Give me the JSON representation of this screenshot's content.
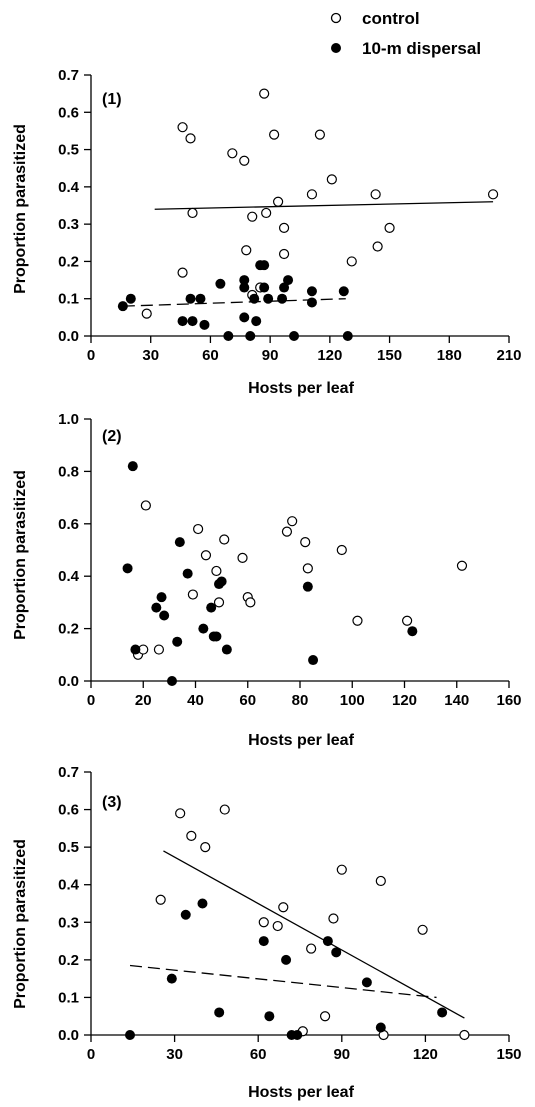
{
  "legend": [
    {
      "label": "control",
      "marker": "open-circle"
    },
    {
      "label": "10-m dispersal",
      "marker": "filled-circle"
    }
  ],
  "colors": {
    "ink": "#000000",
    "background": "#ffffff"
  },
  "chart_data": [
    {
      "type": "scatter",
      "panel_label": "(1)",
      "xlabel": "Hosts per leaf",
      "ylabel": "Proportion parasitized",
      "xlim": [
        0,
        210
      ],
      "ylim": [
        0,
        0.7
      ],
      "xticks": [
        "0",
        "30",
        "60",
        "90",
        "120",
        "150",
        "180",
        "210"
      ],
      "yticks": [
        "0.0",
        "0.1",
        "0.2",
        "0.3",
        "0.4",
        "0.5",
        "0.6",
        "0.7"
      ],
      "xtick_values": [
        0,
        30,
        60,
        90,
        120,
        150,
        180,
        210
      ],
      "ytick_values": [
        0,
        0.1,
        0.2,
        0.3,
        0.4,
        0.5,
        0.6,
        0.7
      ],
      "series": [
        {
          "name": "control",
          "marker": "open-circle",
          "line_style": "solid",
          "fit": [
            [
              32,
              0.34
            ],
            [
              202,
              0.36
            ]
          ],
          "points": [
            [
              28,
              0.06
            ],
            [
              46,
              0.56
            ],
            [
              46,
              0.17
            ],
            [
              50,
              0.53
            ],
            [
              51,
              0.33
            ],
            [
              71,
              0.49
            ],
            [
              77,
              0.47
            ],
            [
              78,
              0.23
            ],
            [
              81,
              0.32
            ],
            [
              81,
              0.11
            ],
            [
              85,
              0.13
            ],
            [
              87,
              0.65
            ],
            [
              88,
              0.33
            ],
            [
              92,
              0.54
            ],
            [
              94,
              0.36
            ],
            [
              97,
              0.29
            ],
            [
              97,
              0.22
            ],
            [
              111,
              0.38
            ],
            [
              115,
              0.54
            ],
            [
              121,
              0.42
            ],
            [
              131,
              0.2
            ],
            [
              143,
              0.38
            ],
            [
              144,
              0.24
            ],
            [
              150,
              0.29
            ],
            [
              202,
              0.38
            ]
          ]
        },
        {
          "name": "10-m dispersal",
          "marker": "filled-circle",
          "line_style": "dashed",
          "fit": [
            [
              16,
              0.08
            ],
            [
              128,
              0.1
            ]
          ],
          "points": [
            [
              16,
              0.08
            ],
            [
              20,
              0.1
            ],
            [
              46,
              0.04
            ],
            [
              50,
              0.1
            ],
            [
              51,
              0.04
            ],
            [
              55,
              0.1
            ],
            [
              57,
              0.03
            ],
            [
              65,
              0.14
            ],
            [
              69,
              0.0
            ],
            [
              77,
              0.05
            ],
            [
              77,
              0.15
            ],
            [
              77,
              0.13
            ],
            [
              80,
              0.0
            ],
            [
              82,
              0.1
            ],
            [
              83,
              0.04
            ],
            [
              85,
              0.19
            ],
            [
              87,
              0.19
            ],
            [
              87,
              0.13
            ],
            [
              89,
              0.1
            ],
            [
              96,
              0.1
            ],
            [
              97,
              0.13
            ],
            [
              99,
              0.15
            ],
            [
              102,
              0.0
            ],
            [
              111,
              0.12
            ],
            [
              111,
              0.09
            ],
            [
              127,
              0.12
            ],
            [
              129,
              0.0
            ]
          ]
        }
      ]
    },
    {
      "type": "scatter",
      "panel_label": "(2)",
      "xlabel": "Hosts per leaf",
      "ylabel": "Proportion parasitized",
      "xlim": [
        0,
        160
      ],
      "ylim": [
        0,
        1.0
      ],
      "xticks": [
        "0",
        "20",
        "40",
        "60",
        "80",
        "100",
        "120",
        "140",
        "160"
      ],
      "yticks": [
        "0.0",
        "0.2",
        "0.4",
        "0.6",
        "0.8",
        "1.0"
      ],
      "xtick_values": [
        0,
        20,
        40,
        60,
        80,
        100,
        120,
        140,
        160
      ],
      "ytick_values": [
        0,
        0.2,
        0.4,
        0.6,
        0.8,
        1.0
      ],
      "series": [
        {
          "name": "control",
          "marker": "open-circle",
          "line_style": "none",
          "points": [
            [
              18,
              0.1
            ],
            [
              20,
              0.12
            ],
            [
              21,
              0.67
            ],
            [
              26,
              0.12
            ],
            [
              39,
              0.33
            ],
            [
              41,
              0.58
            ],
            [
              44,
              0.48
            ],
            [
              48,
              0.42
            ],
            [
              49,
              0.3
            ],
            [
              51,
              0.54
            ],
            [
              58,
              0.47
            ],
            [
              60,
              0.32
            ],
            [
              61,
              0.3
            ],
            [
              75,
              0.57
            ],
            [
              77,
              0.61
            ],
            [
              82,
              0.53
            ],
            [
              83,
              0.43
            ],
            [
              96,
              0.5
            ],
            [
              102,
              0.23
            ],
            [
              121,
              0.23
            ],
            [
              142,
              0.44
            ]
          ]
        },
        {
          "name": "10-m dispersal",
          "marker": "filled-circle",
          "line_style": "none",
          "points": [
            [
              14,
              0.43
            ],
            [
              16,
              0.82
            ],
            [
              17,
              0.12
            ],
            [
              25,
              0.28
            ],
            [
              27,
              0.32
            ],
            [
              28,
              0.25
            ],
            [
              31,
              0.0
            ],
            [
              33,
              0.15
            ],
            [
              34,
              0.53
            ],
            [
              37,
              0.41
            ],
            [
              43,
              0.2
            ],
            [
              46,
              0.28
            ],
            [
              47,
              0.17
            ],
            [
              48,
              0.17
            ],
            [
              49,
              0.37
            ],
            [
              50,
              0.38
            ],
            [
              52,
              0.12
            ],
            [
              83,
              0.36
            ],
            [
              85,
              0.08
            ],
            [
              123,
              0.19
            ]
          ]
        }
      ]
    },
    {
      "type": "scatter",
      "panel_label": "(3)",
      "xlabel": "Hosts per leaf",
      "ylabel": "Proportion parasitized",
      "xlim": [
        0,
        150
      ],
      "ylim": [
        0,
        0.7
      ],
      "xticks": [
        "0",
        "30",
        "60",
        "90",
        "120",
        "150"
      ],
      "yticks": [
        "0.0",
        "0.1",
        "0.2",
        "0.3",
        "0.4",
        "0.5",
        "0.6",
        "0.7"
      ],
      "xtick_values": [
        0,
        30,
        60,
        90,
        120,
        150
      ],
      "ytick_values": [
        0,
        0.1,
        0.2,
        0.3,
        0.4,
        0.5,
        0.6,
        0.7
      ],
      "series": [
        {
          "name": "control",
          "marker": "open-circle",
          "line_style": "solid",
          "fit": [
            [
              26,
              0.49
            ],
            [
              134,
              0.045
            ]
          ],
          "points": [
            [
              25,
              0.36
            ],
            [
              32,
              0.59
            ],
            [
              36,
              0.53
            ],
            [
              41,
              0.5
            ],
            [
              48,
              0.6
            ],
            [
              62,
              0.3
            ],
            [
              67,
              0.29
            ],
            [
              69,
              0.34
            ],
            [
              76,
              0.01
            ],
            [
              79,
              0.23
            ],
            [
              84,
              0.05
            ],
            [
              87,
              0.31
            ],
            [
              90,
              0.44
            ],
            [
              104,
              0.41
            ],
            [
              105,
              0.0
            ],
            [
              119,
              0.28
            ],
            [
              134,
              0.0
            ]
          ]
        },
        {
          "name": "10-m dispersal",
          "marker": "filled-circle",
          "line_style": "dashed",
          "fit": [
            [
              14,
              0.185
            ],
            [
              124,
              0.1
            ]
          ],
          "points": [
            [
              14,
              0.0
            ],
            [
              29,
              0.15
            ],
            [
              34,
              0.32
            ],
            [
              40,
              0.35
            ],
            [
              46,
              0.06
            ],
            [
              62,
              0.25
            ],
            [
              64,
              0.05
            ],
            [
              70,
              0.2
            ],
            [
              72,
              0.0
            ],
            [
              74,
              0.0
            ],
            [
              85,
              0.25
            ],
            [
              88,
              0.22
            ],
            [
              99,
              0.14
            ],
            [
              104,
              0.02
            ],
            [
              126,
              0.06
            ]
          ]
        }
      ]
    }
  ]
}
